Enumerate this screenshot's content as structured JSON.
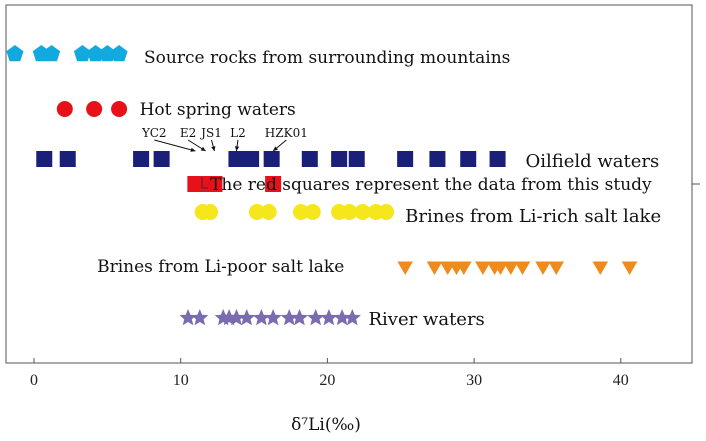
{
  "chart_data": {
    "type": "scatter",
    "xlabel": "δ⁷Li(‰)",
    "xlim": [
      -2,
      45
    ],
    "x_ticks": [
      0,
      10,
      20,
      30,
      40
    ],
    "grid": false,
    "series": [
      {
        "name": "Source rocks from surrounding mountains",
        "marker": "pentagon",
        "color": "#12a9df",
        "x": [
          -1.3,
          0.5,
          1.2,
          3.3,
          4.2,
          5.0,
          5.8
        ]
      },
      {
        "name": "Hot spring waters",
        "marker": "circle",
        "color": "#e8111a",
        "x": [
          2.1,
          4.1,
          5.8
        ]
      },
      {
        "name": "Oilfield waters",
        "marker": "square",
        "color": "#1a1f7a",
        "x": [
          0.7,
          2.3,
          7.3,
          8.7,
          13.8,
          14.8,
          16.2,
          18.8,
          20.8,
          22.0,
          25.3,
          27.5,
          29.6,
          31.6
        ]
      },
      {
        "name": "The red squares represent the data from this study",
        "marker": "square",
        "color": "#e8111a",
        "x": [
          11.0,
          11.7,
          12.3,
          16.3
        ]
      },
      {
        "name": "Brines from Li-rich salt lake",
        "marker": "circle",
        "color": "#f6e61c",
        "x": [
          11.5,
          12.0,
          15.2,
          16.0,
          18.2,
          19.0,
          20.8,
          21.5,
          22.4,
          23.3,
          24.0
        ]
      },
      {
        "name": "Brines from Li-poor salt lake",
        "marker": "triangle-down",
        "color": "#ef8a1c",
        "x": [
          25.3,
          27.3,
          28.2,
          28.8,
          29.3,
          30.6,
          31.4,
          31.8,
          32.5,
          33.3,
          34.7,
          35.6,
          38.6,
          40.6
        ]
      },
      {
        "name": "River waters",
        "marker": "star",
        "color": "#7b6cb0",
        "x": [
          10.5,
          11.3,
          12.9,
          13.3,
          13.8,
          14.5,
          15.5,
          16.3,
          17.4,
          18.1,
          19.2,
          20.1,
          21.0,
          21.7
        ]
      }
    ],
    "row_labels": [
      {
        "text": "Source rocks from surrounding mountains",
        "x": 7.5
      },
      {
        "text": "Hot spring waters",
        "x": 7.2
      },
      {
        "text": "Oilfield waters",
        "x": 33.5
      },
      {
        "text": "The red squares represent the data from this study",
        "x": 12.0
      },
      {
        "text": "Brines from Li-rich salt lake",
        "x": 25.3
      },
      {
        "text": "Brines from Li-poor salt lake",
        "x": 4.3
      },
      {
        "text": "River waters",
        "x": 22.8
      }
    ],
    "sample_labels": [
      {
        "text": "YC2",
        "x": 8.2
      },
      {
        "text": "E2",
        "x": 10.5
      },
      {
        "text": "JS1",
        "x": 12.1
      },
      {
        "text": "L2",
        "x": 13.9
      },
      {
        "text": "HZK01",
        "x": 17.2
      }
    ]
  }
}
